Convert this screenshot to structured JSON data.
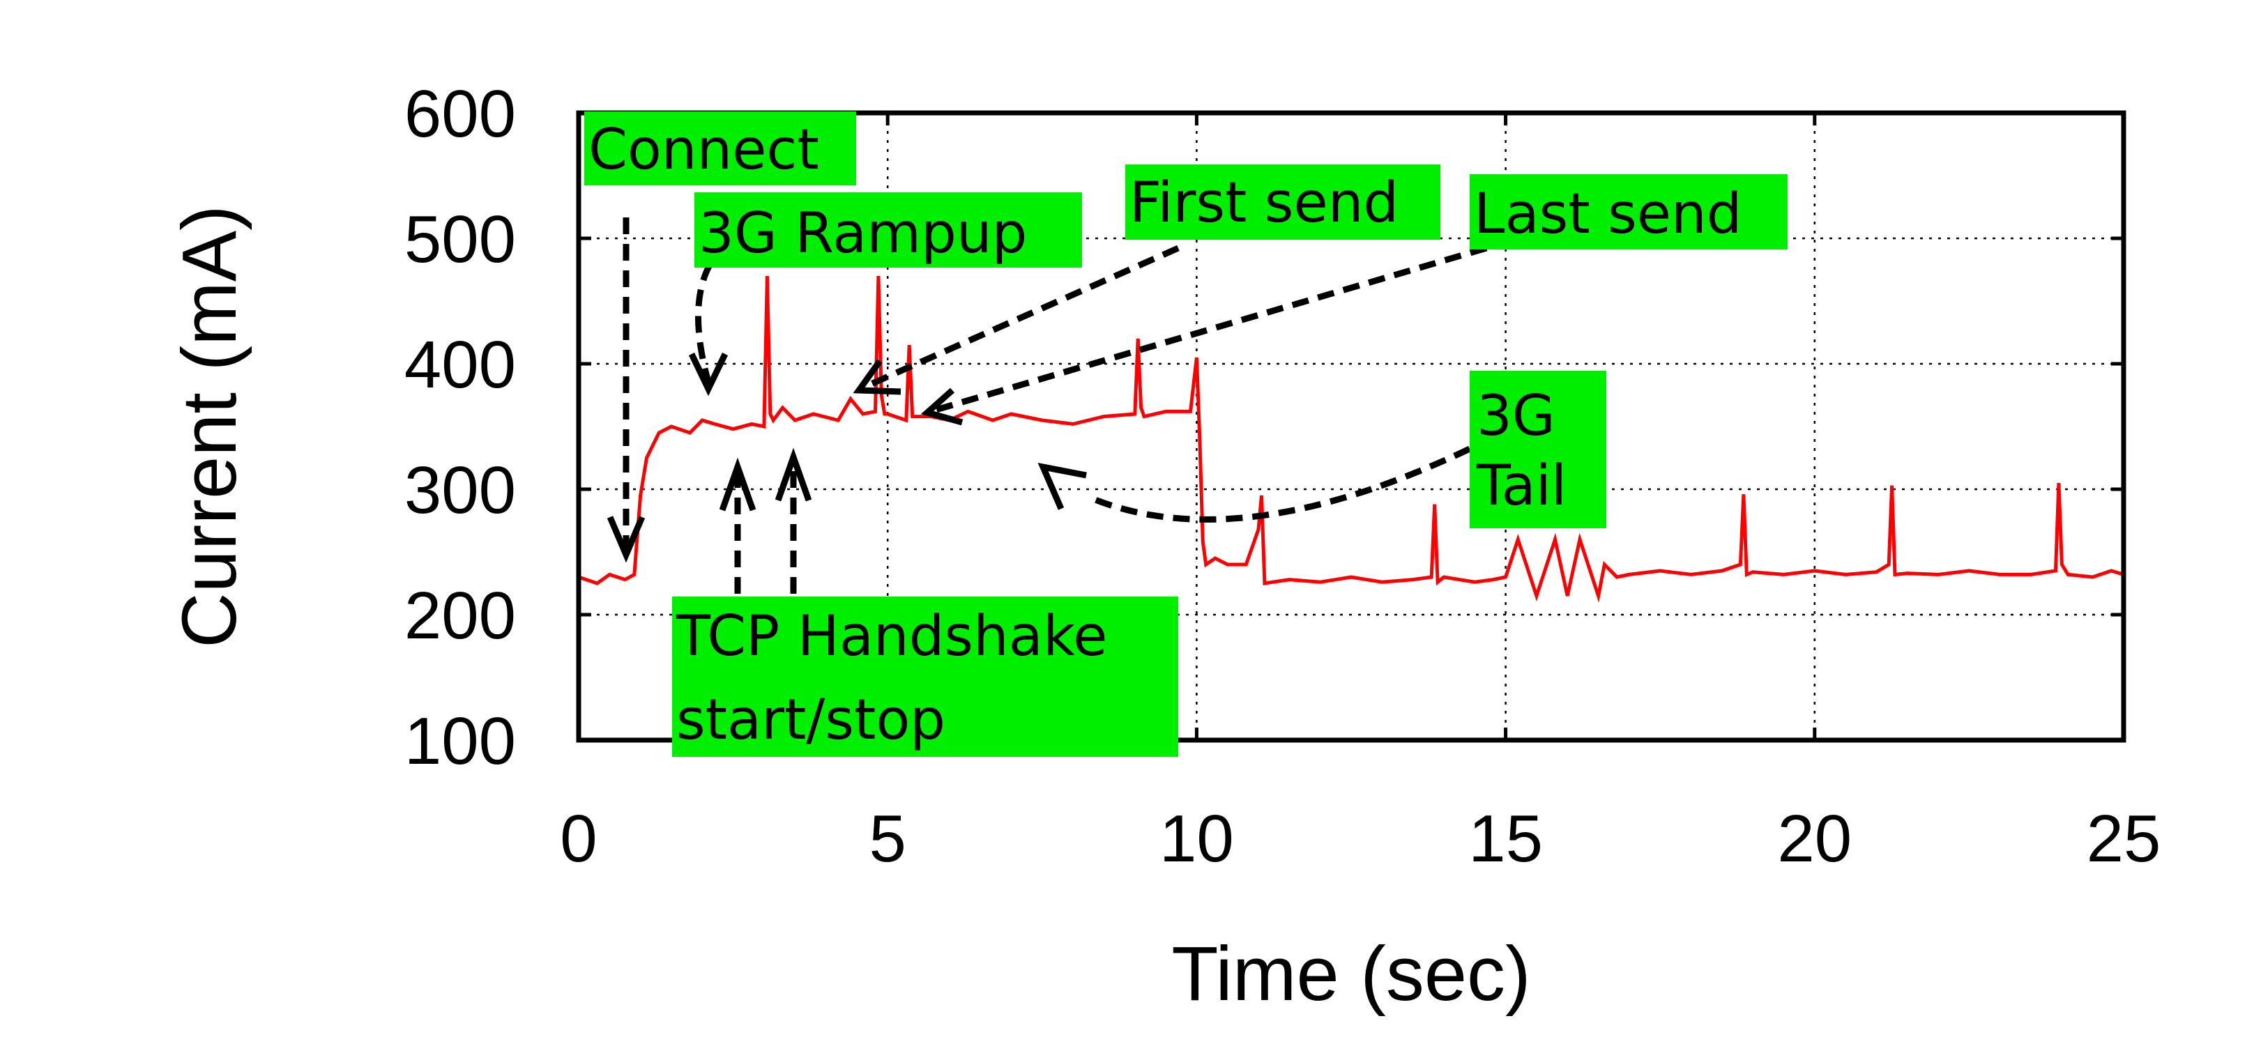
{
  "chart_data": {
    "type": "line",
    "xlabel": "Time (sec)",
    "ylabel": "Current (mA)",
    "xlim": [
      0,
      25
    ],
    "ylim": [
      100,
      600
    ],
    "xticks": [
      0,
      5,
      10,
      15,
      20,
      25
    ],
    "yticks": [
      100,
      200,
      300,
      400,
      500,
      600
    ],
    "grid": true,
    "series": [
      {
        "color": "#ff0000",
        "x": [
          0,
          0.3,
          0.5,
          0.75,
          0.9,
          1.0,
          1.1,
          1.3,
          1.5,
          1.8,
          2.0,
          2.2,
          2.5,
          2.8,
          3.0,
          3.05,
          3.1,
          3.15,
          3.3,
          3.5,
          3.8,
          4.2,
          4.4,
          4.6,
          4.8,
          4.85,
          4.9,
          4.95,
          5.0,
          5.3,
          5.35,
          5.4,
          5.7,
          6.0,
          6.3,
          6.7,
          7.0,
          7.5,
          8.0,
          8.5,
          9.0,
          9.05,
          9.1,
          9.15,
          9.5,
          9.9,
          10.0,
          10.05,
          10.1,
          10.15,
          10.3,
          10.5,
          10.8,
          11.0,
          11.05,
          11.1,
          11.5,
          12.0,
          12.5,
          13.0,
          13.5,
          13.8,
          13.85,
          13.9,
          14.0,
          14.5,
          14.8,
          15.0,
          15.2,
          15.5,
          15.8,
          16.0,
          16.2,
          16.5,
          16.6,
          16.8,
          17.0,
          17.5,
          18.0,
          18.5,
          18.8,
          18.85,
          18.9,
          19.0,
          19.5,
          20.0,
          20.5,
          21.0,
          21.2,
          21.25,
          21.3,
          21.5,
          22.0,
          22.5,
          23.0,
          23.5,
          23.9,
          23.95,
          24.0,
          24.1,
          24.5,
          24.8,
          25.0
        ],
        "y": [
          230,
          225,
          232,
          228,
          232,
          295,
          325,
          345,
          350,
          345,
          355,
          352,
          348,
          352,
          350,
          470,
          360,
          355,
          365,
          355,
          360,
          355,
          372,
          360,
          362,
          470,
          375,
          360,
          360,
          355,
          415,
          358,
          358,
          355,
          362,
          355,
          360,
          355,
          352,
          358,
          360,
          420,
          365,
          358,
          362,
          362,
          405,
          340,
          258,
          240,
          245,
          240,
          240,
          268,
          295,
          225,
          228,
          226,
          230,
          226,
          228,
          230,
          288,
          226,
          230,
          226,
          228,
          230,
          260,
          215,
          260,
          215,
          260,
          215,
          240,
          230,
          232,
          235,
          232,
          235,
          240,
          296,
          232,
          234,
          232,
          235,
          232,
          234,
          240,
          303,
          232,
          233,
          232,
          235,
          232,
          232,
          235,
          305,
          240,
          232,
          230,
          235,
          232
        ]
      }
    ],
    "annotations": [
      "Connect",
      "3G Rampup",
      "First send",
      "Last send",
      "3G Tail",
      "TCP Handshake start/stop"
    ]
  },
  "colors": {
    "series_line": "#ff0000",
    "annotation_box": "#00ee00",
    "axis": "#000000"
  }
}
